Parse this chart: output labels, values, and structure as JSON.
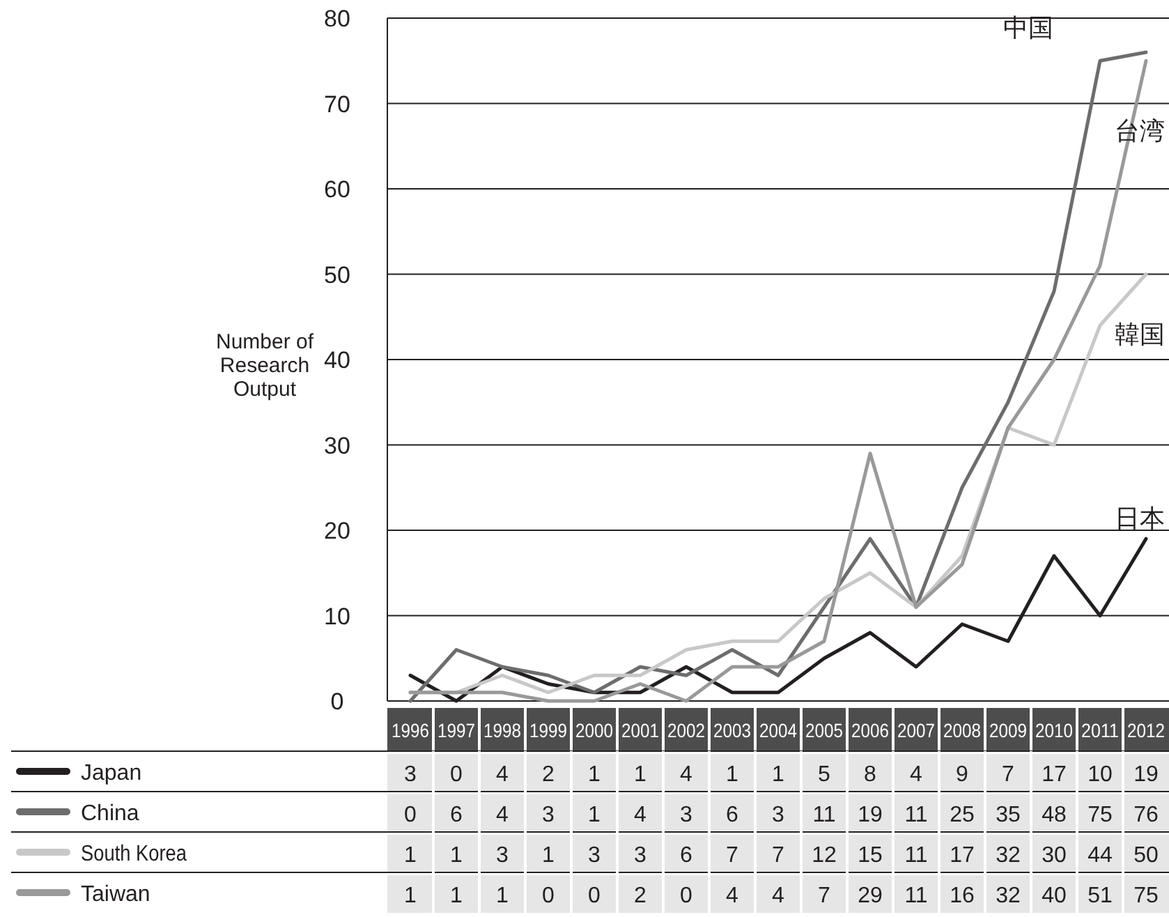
{
  "chart_data": {
    "type": "line",
    "ylabel": "Number of Research Output",
    "categories": [
      "1996",
      "1997",
      "1998",
      "1999",
      "2000",
      "2001",
      "2002",
      "2003",
      "2004",
      "2005",
      "2006",
      "2007",
      "2008",
      "2009",
      "2010",
      "2011",
      "2012"
    ],
    "series": [
      {
        "name": "Japan",
        "color": "#231f20",
        "values": [
          3,
          0,
          4,
          2,
          1,
          1,
          4,
          1,
          1,
          5,
          8,
          4,
          9,
          7,
          17,
          10,
          19
        ]
      },
      {
        "name": "China",
        "color": "#6d6d6d",
        "values": [
          0,
          6,
          4,
          3,
          1,
          4,
          3,
          6,
          3,
          11,
          19,
          11,
          25,
          35,
          48,
          75,
          76
        ]
      },
      {
        "name": "South Korea",
        "color": "#c8c8c8",
        "values": [
          1,
          1,
          3,
          1,
          3,
          3,
          6,
          7,
          7,
          12,
          15,
          11,
          17,
          32,
          30,
          44,
          50
        ]
      },
      {
        "name": "Taiwan",
        "color": "#999999",
        "values": [
          1,
          1,
          1,
          0,
          0,
          2,
          0,
          4,
          4,
          7,
          29,
          11,
          16,
          32,
          40,
          51,
          75
        ]
      }
    ],
    "ylim": [
      0,
      80
    ],
    "yticks": [
      0,
      10,
      20,
      30,
      40,
      50,
      60,
      70,
      80
    ],
    "grid": "y",
    "legend": "bottom",
    "data_labels": true,
    "line_style": "solid",
    "marker": "none",
    "annotations": [
      "中国",
      "台湾",
      "韓国",
      "日本"
    ]
  }
}
